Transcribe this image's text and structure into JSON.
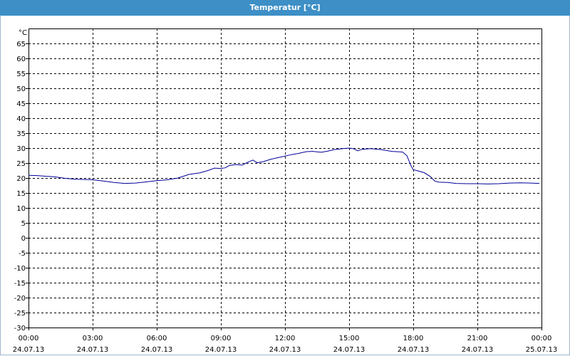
{
  "window": {
    "title": "Temperatur [°C]"
  },
  "chart_data": {
    "type": "line",
    "title": "Temperatur [°C]",
    "ylabel": "°C",
    "xlabel": "",
    "ylim": [
      -30,
      70
    ],
    "yticks": [
      65,
      60,
      55,
      50,
      45,
      40,
      35,
      30,
      25,
      20,
      15,
      10,
      5,
      0,
      -5,
      -10,
      -15,
      -20,
      -25,
      -30
    ],
    "xlim": [
      0,
      24
    ],
    "xticks": [
      {
        "h": 0,
        "time": "00:00",
        "date": "24.07.13"
      },
      {
        "h": 3,
        "time": "03:00",
        "date": "24.07.13"
      },
      {
        "h": 6,
        "time": "06:00",
        "date": "24.07.13"
      },
      {
        "h": 9,
        "time": "09:00",
        "date": "24.07.13"
      },
      {
        "h": 12,
        "time": "12:00",
        "date": "24.07.13"
      },
      {
        "h": 15,
        "time": "15:00",
        "date": "24.07.13"
      },
      {
        "h": 18,
        "time": "18:00",
        "date": "24.07.13"
      },
      {
        "h": 21,
        "time": "21:00",
        "date": "24.07.13"
      },
      {
        "h": 24,
        "time": "00:00",
        "date": "25.07.13"
      }
    ],
    "grid": true,
    "colors": {
      "line": "#000099",
      "grid": "#000000"
    },
    "series": [
      {
        "x": [
          0.0,
          0.4,
          0.8,
          1.2,
          1.7,
          2.2,
          2.7,
          3.0,
          3.5,
          4.0,
          4.5,
          5.0,
          5.5,
          6.0,
          6.5,
          7.0,
          7.5,
          8.0,
          8.4,
          8.7,
          9.0,
          9.2,
          9.4,
          9.7,
          10.0,
          10.3,
          10.5,
          10.7,
          11.0,
          11.3,
          11.6,
          12.0,
          12.3,
          12.6,
          13.0,
          13.3,
          13.7,
          14.0,
          14.3,
          14.7,
          15.0,
          15.2,
          15.4,
          15.6,
          16.0,
          16.5,
          17.0,
          17.5,
          17.7,
          17.9,
          18.0,
          18.2,
          18.5,
          18.8,
          19.0,
          19.2,
          19.6,
          20.0,
          20.5,
          21.0,
          21.5,
          22.0,
          22.5,
          23.0,
          23.5,
          23.9
        ],
        "y": [
          20.9,
          20.8,
          20.6,
          20.4,
          19.9,
          19.6,
          19.5,
          19.4,
          19.0,
          18.5,
          18.2,
          18.3,
          18.7,
          19.1,
          19.4,
          20.0,
          21.2,
          21.7,
          22.5,
          23.3,
          23.2,
          23.4,
          24.2,
          24.5,
          24.3,
          25.4,
          26.0,
          25.1,
          25.5,
          26.2,
          26.7,
          27.3,
          27.8,
          28.2,
          28.8,
          28.9,
          28.6,
          29.0,
          29.5,
          29.8,
          30.0,
          29.8,
          29.1,
          29.6,
          29.8,
          29.5,
          28.9,
          28.7,
          27.5,
          24.0,
          22.8,
          22.4,
          21.8,
          20.5,
          19.0,
          18.6,
          18.5,
          18.2,
          18.1,
          18.1,
          18.0,
          18.1,
          18.3,
          18.4,
          18.3,
          18.2
        ]
      }
    ]
  }
}
